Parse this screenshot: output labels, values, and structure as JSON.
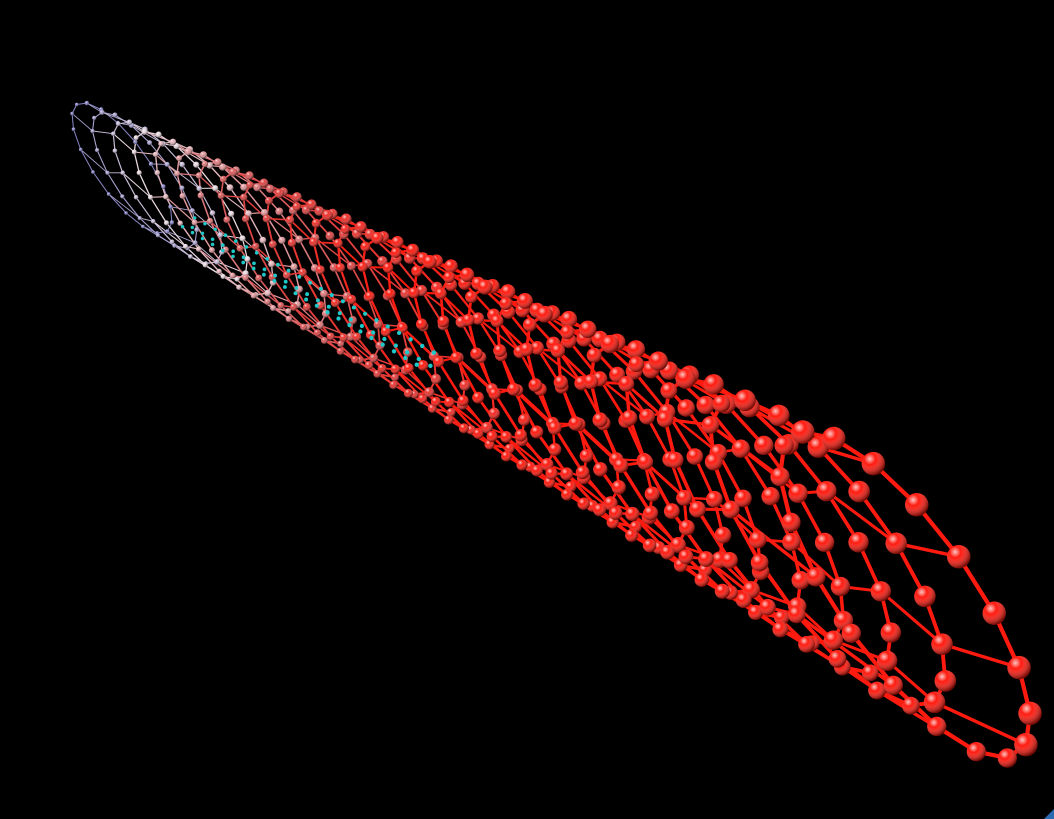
{
  "scene": {
    "subject": "nanotube-molecule",
    "background_color": "#000000",
    "rings": 26,
    "atoms_per_ring": 18,
    "bond_color": "#e01010",
    "atom_color_near": "#ff1a0f",
    "atom_color_mid": "#d84a4a",
    "atom_color_far": "#e8d8e0",
    "atom_color_farthest": "#8a88c8",
    "inner_chain_color": "#1ec8c8",
    "inner_chains": 3
  },
  "corner": {
    "icon": "resize-grip-icon",
    "color": "#2a6ab0"
  }
}
